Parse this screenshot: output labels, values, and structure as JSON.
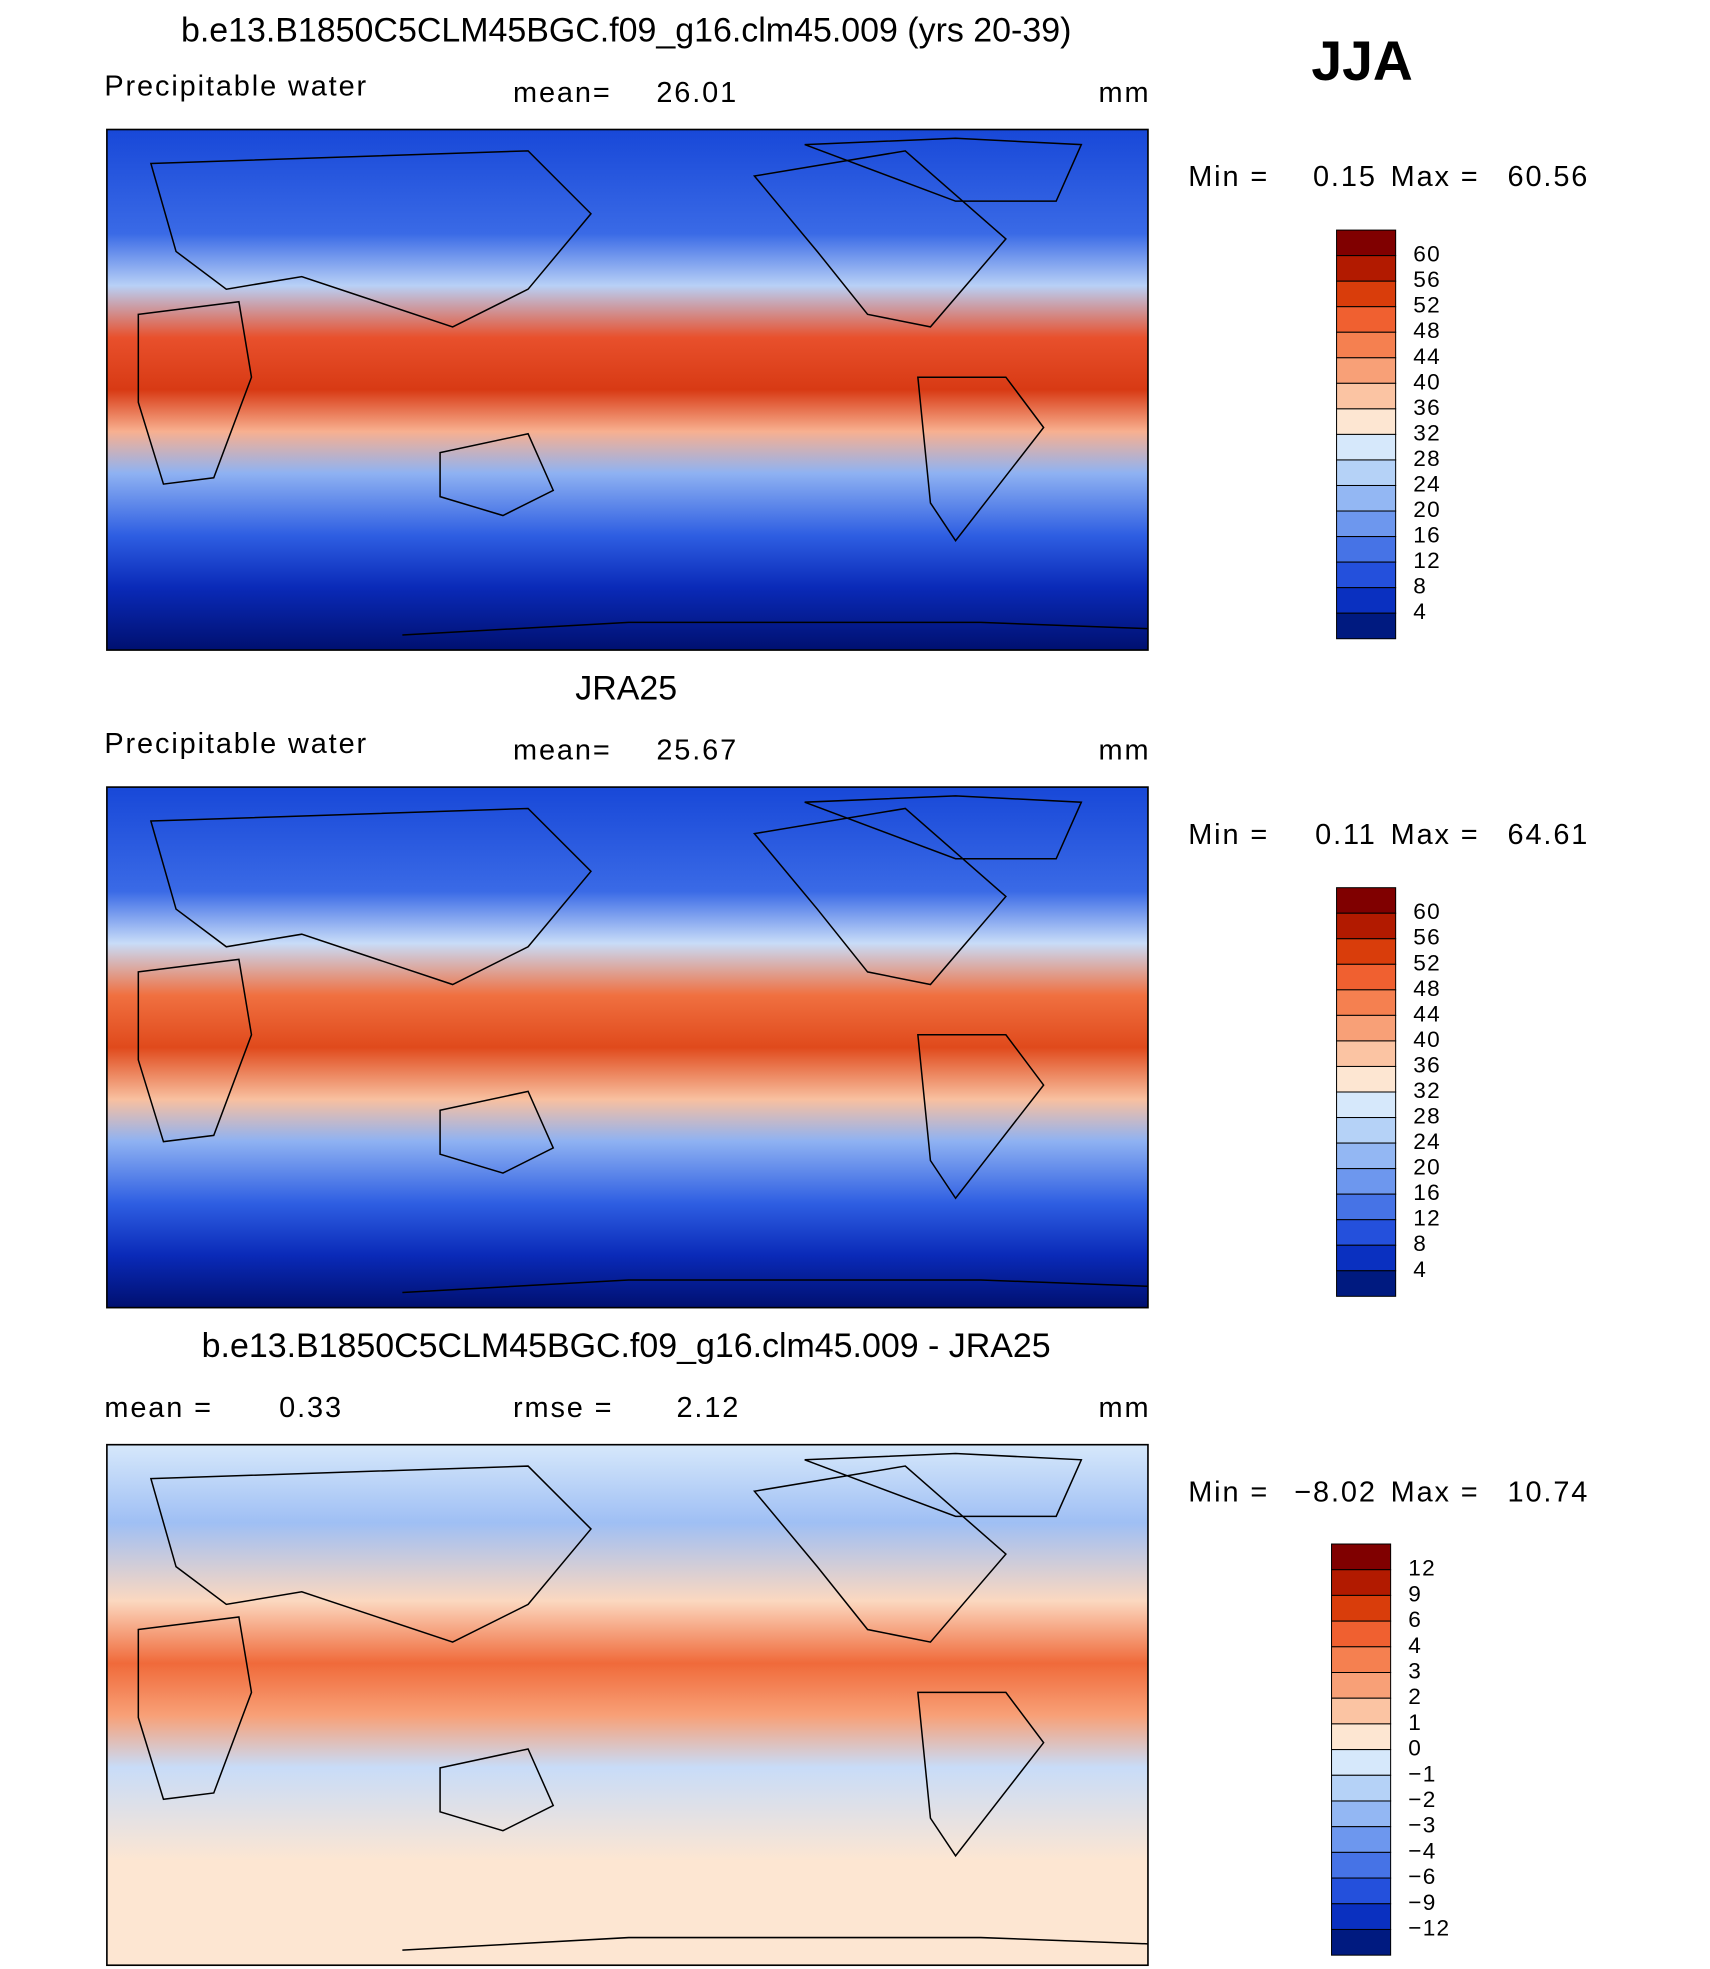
{
  "season": "JJA",
  "panels": [
    {
      "title": "b.e13.B1850C5CLM45BGC.f09_g16.clm45.009 (yrs 20-39)",
      "left_label": "Precipitable water",
      "center_label": "mean=",
      "center_value": "26.01",
      "units": "mm",
      "min_label": "Min =",
      "min": "0.15",
      "max_label": "Max =",
      "max": "60.56",
      "levels": [
        "60",
        "56",
        "52",
        "48",
        "44",
        "40",
        "36",
        "32",
        "28",
        "24",
        "20",
        "16",
        "12",
        "8",
        "4"
      ],
      "colors": [
        "#800000",
        "#b21a00",
        "#d93d0b",
        "#f06030",
        "#f58050",
        "#f8a077",
        "#fbc4a3",
        "#fde6d2",
        "#d6e8fb",
        "#b5d2f7",
        "#93b7f3",
        "#6d97ee",
        "#4673e6",
        "#2450dc",
        "#0a30c0",
        "#001a80"
      ]
    },
    {
      "title": "JRA25",
      "left_label": "Precipitable water",
      "center_label": "mean=",
      "center_value": "25.67",
      "units": "mm",
      "min_label": "Min =",
      "min": "0.11",
      "max_label": "Max =",
      "max": "64.61",
      "levels": [
        "60",
        "56",
        "52",
        "48",
        "44",
        "40",
        "36",
        "32",
        "28",
        "24",
        "20",
        "16",
        "12",
        "8",
        "4"
      ],
      "colors": [
        "#800000",
        "#b21a00",
        "#d93d0b",
        "#f06030",
        "#f58050",
        "#f8a077",
        "#fbc4a3",
        "#fde6d2",
        "#d6e8fb",
        "#b5d2f7",
        "#93b7f3",
        "#6d97ee",
        "#4673e6",
        "#2450dc",
        "#0a30c0",
        "#001a80"
      ]
    },
    {
      "title": "b.e13.B1850C5CLM45BGC.f09_g16.clm45.009 - JRA25",
      "left_label": "mean =",
      "left_value": "0.33",
      "center_label": "rmse =",
      "center_value": "2.12",
      "units": "mm",
      "min_label": "Min =",
      "min": "−8.02",
      "max_label": "Max =",
      "max": "10.74",
      "levels": [
        "12",
        "9",
        "6",
        "4",
        "3",
        "2",
        "1",
        "0",
        "−1",
        "−2",
        "−3",
        "−4",
        "−6",
        "−9",
        "−12"
      ],
      "colors": [
        "#800000",
        "#b21a00",
        "#d93d0b",
        "#f06030",
        "#f58050",
        "#f8a077",
        "#fbc4a3",
        "#fde6d2",
        "#d6e8fb",
        "#b5d2f7",
        "#93b7f3",
        "#6d97ee",
        "#4673e6",
        "#2450dc",
        "#0a30c0",
        "#001a80"
      ]
    }
  ]
}
